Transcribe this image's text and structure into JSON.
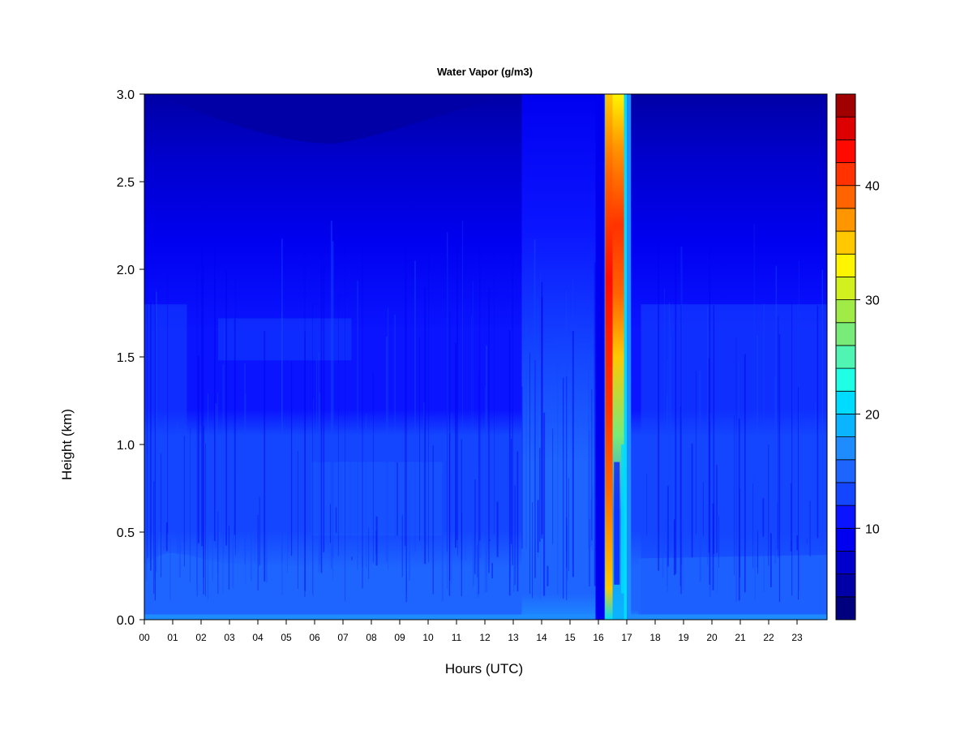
{
  "chart_data": {
    "type": "heatmap",
    "title": "Water Vapor (g/m3)",
    "xlabel": "Hours (UTC)",
    "ylabel": "Height (km)",
    "xlim": [
      0,
      24
    ],
    "ylim": [
      0,
      3
    ],
    "x_ticks": [
      "00",
      "01",
      "02",
      "03",
      "04",
      "05",
      "06",
      "07",
      "08",
      "09",
      "10",
      "11",
      "12",
      "13",
      "14",
      "15",
      "16",
      "17",
      "18",
      "19",
      "20",
      "21",
      "22",
      "23"
    ],
    "y_ticks": [
      "0.0",
      "0.5",
      "1.0",
      "1.5",
      "2.0",
      "2.5",
      "3.0"
    ],
    "colorbar": {
      "min": 2,
      "max": 48,
      "ticks": [
        "10",
        "20",
        "30",
        "40"
      ],
      "levels": [
        2,
        4,
        6,
        8,
        10,
        12,
        14,
        16,
        18,
        20,
        22,
        24,
        26,
        28,
        30,
        32,
        34,
        36,
        38,
        40,
        42,
        44,
        46,
        48
      ],
      "colors": [
        "#00007F",
        "#0000A6",
        "#0000CC",
        "#0000F0",
        "#0A14FF",
        "#1446FF",
        "#1E64FF",
        "#1E8CFF",
        "#0AB4FF",
        "#00DCFF",
        "#1EFFE6",
        "#50F5B4",
        "#78EB78",
        "#A0EB46",
        "#D2F01E",
        "#FFF500",
        "#FFC800",
        "#FF9600",
        "#FF6400",
        "#FF3200",
        "#FF0A00",
        "#DC0000",
        "#A00000",
        "#780000"
      ]
    },
    "profiles": [
      {
        "hours": [
          0,
          13.3
        ],
        "heights_km": [
          0,
          0.05,
          0.3,
          0.5,
          1.0,
          1.6,
          2.0,
          2.6,
          3.0
        ],
        "values": [
          15,
          13,
          12,
          10,
          9,
          8.5,
          7,
          6,
          5
        ]
      },
      {
        "hours": [
          13.3,
          16.1
        ],
        "heights_km": [
          0,
          0.3,
          0.5,
          1.0,
          1.6,
          2.0,
          2.6,
          3.0
        ],
        "values": [
          15,
          13.5,
          12.5,
          11,
          10,
          8.5,
          7,
          6.5
        ]
      },
      {
        "hours": [
          16.2,
          16.5
        ],
        "heights_km": [
          0,
          0.5,
          1.0,
          1.5,
          2.0,
          2.5,
          3.0
        ],
        "values": [
          26,
          35,
          40,
          40,
          38,
          32,
          22
        ]
      },
      {
        "hours": [
          16.5,
          17.1
        ],
        "heights_km": [
          0,
          0.5,
          1.0,
          1.5,
          2.0,
          2.5,
          3.0
        ],
        "values": [
          20,
          16,
          28,
          35,
          38,
          34,
          25
        ]
      },
      {
        "hours": [
          17.5,
          24
        ],
        "heights_km": [
          0,
          0.3,
          0.5,
          1.0,
          1.6,
          2.0,
          2.6,
          3.0
        ],
        "values": [
          14,
          12.5,
          11,
          10,
          9.5,
          8,
          7,
          6.5
        ]
      }
    ]
  }
}
